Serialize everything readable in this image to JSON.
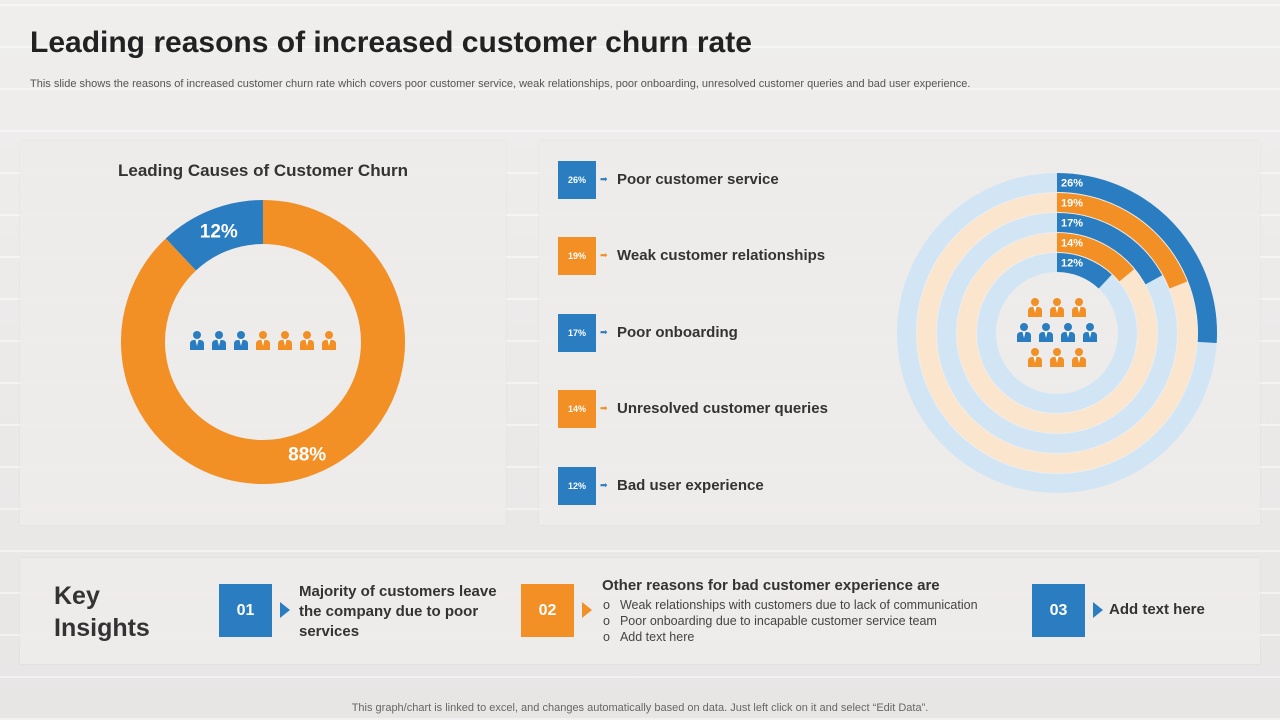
{
  "title": "Leading reasons of increased customer churn rate",
  "subtitle": "This slide shows the reasons of increased customer churn rate which covers poor customer service, weak relationships, poor onboarding, unresolved customer queries and bad user experience.",
  "colors": {
    "blue": "#2a7dc0",
    "orange": "#f28f25",
    "light_blue": "#d2e5f5",
    "light_orange": "#fbe6cd"
  },
  "chart_data": [
    {
      "type": "pie",
      "subtype": "donut",
      "title": "Leading Causes of Customer Churn",
      "categories": [
        "Blue segment",
        "Orange segment"
      ],
      "values": [
        12,
        88
      ],
      "labels": [
        "12%",
        "88%"
      ],
      "colors": [
        "#2a7dc0",
        "#f28f25"
      ]
    },
    {
      "type": "radial-bar",
      "title": "",
      "categories": [
        "Poor customer service",
        "Weak customer relationships",
        "Poor onboarding",
        "Unresolved customer queries",
        "Bad user experience"
      ],
      "values": [
        26,
        19,
        17,
        14,
        12
      ],
      "labels": [
        "26%",
        "19%",
        "17%",
        "14%",
        "12%"
      ],
      "colors": [
        "#2a7dc0",
        "#f28f25",
        "#2a7dc0",
        "#f28f25",
        "#2a7dc0"
      ],
      "track_colors": [
        "#d2e5f5",
        "#fbe6cd",
        "#d2e5f5",
        "#fbe6cd",
        "#d2e5f5"
      ],
      "max": 100
    }
  ],
  "legend": [
    {
      "pct": "26%",
      "label": "Poor customer service",
      "color": "#2a7dc0"
    },
    {
      "pct": "19%",
      "label": "Weak customer relationships",
      "color": "#f28f25"
    },
    {
      "pct": "17%",
      "label": "Poor onboarding",
      "color": "#2a7dc0"
    },
    {
      "pct": "14%",
      "label": "Unresolved customer queries",
      "color": "#f28f25"
    },
    {
      "pct": "12%",
      "label": "Bad user experience",
      "color": "#2a7dc0"
    }
  ],
  "donut_people_icons": [
    "#2a7dc0",
    "#2a7dc0",
    "#2a7dc0",
    "#f28f25",
    "#f28f25",
    "#f28f25",
    "#f28f25"
  ],
  "radial_people_icons": [
    [
      "#f28f25",
      "#f28f25",
      "#f28f25"
    ],
    [
      "#2a7dc0",
      "#2a7dc0",
      "#2a7dc0",
      "#2a7dc0"
    ],
    [
      "#f28f25",
      "#f28f25",
      "#f28f25"
    ]
  ],
  "insights": {
    "heading_line1": "Key",
    "heading_line2": "Insights",
    "items": [
      {
        "num": "01",
        "text": "Majority of customers leave the company due to poor services"
      },
      {
        "num": "02",
        "heading": "Other reasons for bad customer experience are",
        "bullets": [
          "Weak relationships with customers due to lack of communication",
          "Poor onboarding due to incapable customer service team",
          "Add text here"
        ]
      },
      {
        "num": "03",
        "text": "Add text here"
      }
    ]
  },
  "footer": "This graph/chart is linked to excel, and changes automatically based on data. Just left click on it and select “Edit Data”."
}
